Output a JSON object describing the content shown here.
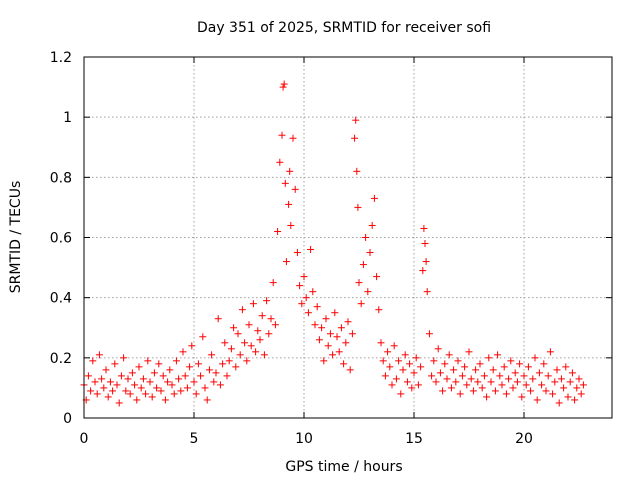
{
  "chart_data": {
    "type": "scatter",
    "title": "Day 351 of 2025, SRMTID for receiver sofi",
    "xlabel": "GPS time / hours",
    "ylabel": "SRMTID / TECUs",
    "xlim": [
      0,
      24
    ],
    "ylim": [
      0,
      1.2
    ],
    "xticks": [
      0,
      5,
      10,
      15,
      20
    ],
    "xtick_labels": [
      "0",
      "5",
      "10",
      "15",
      "20"
    ],
    "yticks": [
      0,
      0.2,
      0.4,
      0.6,
      0.8,
      1,
      1.2
    ],
    "ytick_labels": [
      "0",
      "0.2",
      "0.4",
      "0.6",
      "0.8",
      "1",
      "1.2"
    ],
    "grid": true,
    "marker": "+",
    "color": "#ff0000",
    "series": [
      {
        "name": "sofi",
        "points": [
          [
            0.0,
            0.11
          ],
          [
            0.1,
            0.06
          ],
          [
            0.2,
            0.14
          ],
          [
            0.3,
            0.09
          ],
          [
            0.4,
            0.19
          ],
          [
            0.5,
            0.12
          ],
          [
            0.6,
            0.08
          ],
          [
            0.7,
            0.21
          ],
          [
            0.8,
            0.13
          ],
          [
            0.9,
            0.1
          ],
          [
            1.0,
            0.16
          ],
          [
            1.1,
            0.07
          ],
          [
            1.2,
            0.12
          ],
          [
            1.3,
            0.09
          ],
          [
            1.4,
            0.18
          ],
          [
            1.5,
            0.11
          ],
          [
            1.6,
            0.05
          ],
          [
            1.7,
            0.14
          ],
          [
            1.8,
            0.2
          ],
          [
            1.9,
            0.09
          ],
          [
            2.0,
            0.13
          ],
          [
            2.1,
            0.08
          ],
          [
            2.2,
            0.15
          ],
          [
            2.3,
            0.11
          ],
          [
            2.4,
            0.06
          ],
          [
            2.5,
            0.17
          ],
          [
            2.6,
            0.1
          ],
          [
            2.7,
            0.13
          ],
          [
            2.8,
            0.08
          ],
          [
            2.9,
            0.19
          ],
          [
            3.0,
            0.12
          ],
          [
            3.1,
            0.07
          ],
          [
            3.2,
            0.15
          ],
          [
            3.3,
            0.1
          ],
          [
            3.4,
            0.18
          ],
          [
            3.5,
            0.09
          ],
          [
            3.6,
            0.14
          ],
          [
            3.7,
            0.06
          ],
          [
            3.8,
            0.12
          ],
          [
            3.9,
            0.16
          ],
          [
            4.0,
            0.11
          ],
          [
            4.1,
            0.08
          ],
          [
            4.2,
            0.19
          ],
          [
            4.3,
            0.13
          ],
          [
            4.4,
            0.09
          ],
          [
            4.5,
            0.22
          ],
          [
            4.6,
            0.14
          ],
          [
            4.7,
            0.1
          ],
          [
            4.8,
            0.17
          ],
          [
            4.9,
            0.24
          ],
          [
            5.0,
            0.12
          ],
          [
            5.1,
            0.08
          ],
          [
            5.2,
            0.18
          ],
          [
            5.3,
            0.14
          ],
          [
            5.4,
            0.27
          ],
          [
            5.5,
            0.1
          ],
          [
            5.6,
            0.06
          ],
          [
            5.7,
            0.16
          ],
          [
            5.8,
            0.21
          ],
          [
            5.9,
            0.12
          ],
          [
            6.0,
            0.15
          ],
          [
            6.1,
            0.33
          ],
          [
            6.2,
            0.11
          ],
          [
            6.3,
            0.18
          ],
          [
            6.4,
            0.25
          ],
          [
            6.5,
            0.14
          ],
          [
            6.6,
            0.19
          ],
          [
            6.7,
            0.23
          ],
          [
            6.8,
            0.3
          ],
          [
            6.9,
            0.17
          ],
          [
            7.0,
            0.28
          ],
          [
            7.1,
            0.21
          ],
          [
            7.2,
            0.36
          ],
          [
            7.3,
            0.25
          ],
          [
            7.4,
            0.19
          ],
          [
            7.5,
            0.31
          ],
          [
            7.6,
            0.24
          ],
          [
            7.7,
            0.38
          ],
          [
            7.8,
            0.22
          ],
          [
            7.9,
            0.29
          ],
          [
            8.0,
            0.26
          ],
          [
            8.1,
            0.34
          ],
          [
            8.2,
            0.21
          ],
          [
            8.3,
            0.39
          ],
          [
            8.4,
            0.28
          ],
          [
            8.5,
            0.33
          ],
          [
            8.6,
            0.45
          ],
          [
            8.7,
            0.31
          ],
          [
            8.8,
            0.62
          ],
          [
            8.9,
            0.85
          ],
          [
            9.0,
            0.94
          ],
          [
            9.05,
            1.1
          ],
          [
            9.1,
            1.11
          ],
          [
            9.15,
            0.78
          ],
          [
            9.2,
            0.52
          ],
          [
            9.3,
            0.71
          ],
          [
            9.35,
            0.82
          ],
          [
            9.4,
            0.64
          ],
          [
            9.5,
            0.93
          ],
          [
            9.6,
            0.76
          ],
          [
            9.7,
            0.55
          ],
          [
            9.8,
            0.44
          ],
          [
            9.9,
            0.38
          ],
          [
            10.0,
            0.47
          ],
          [
            10.1,
            0.4
          ],
          [
            10.2,
            0.35
          ],
          [
            10.3,
            0.56
          ],
          [
            10.4,
            0.42
          ],
          [
            10.5,
            0.31
          ],
          [
            10.6,
            0.37
          ],
          [
            10.7,
            0.26
          ],
          [
            10.8,
            0.3
          ],
          [
            10.9,
            0.19
          ],
          [
            11.0,
            0.33
          ],
          [
            11.1,
            0.24
          ],
          [
            11.2,
            0.28
          ],
          [
            11.3,
            0.21
          ],
          [
            11.4,
            0.35
          ],
          [
            11.5,
            0.27
          ],
          [
            11.6,
            0.22
          ],
          [
            11.7,
            0.3
          ],
          [
            11.8,
            0.18
          ],
          [
            11.9,
            0.25
          ],
          [
            12.0,
            0.32
          ],
          [
            12.1,
            0.16
          ],
          [
            12.2,
            0.28
          ],
          [
            12.3,
            0.93
          ],
          [
            12.35,
            0.99
          ],
          [
            12.4,
            0.82
          ],
          [
            12.45,
            0.7
          ],
          [
            12.5,
            0.45
          ],
          [
            12.6,
            0.38
          ],
          [
            12.7,
            0.51
          ],
          [
            12.8,
            0.6
          ],
          [
            12.9,
            0.42
          ],
          [
            13.0,
            0.55
          ],
          [
            13.1,
            0.64
          ],
          [
            13.2,
            0.73
          ],
          [
            13.3,
            0.47
          ],
          [
            13.4,
            0.36
          ],
          [
            13.5,
            0.25
          ],
          [
            13.6,
            0.19
          ],
          [
            13.7,
            0.14
          ],
          [
            13.8,
            0.22
          ],
          [
            13.9,
            0.17
          ],
          [
            14.0,
            0.11
          ],
          [
            14.1,
            0.24
          ],
          [
            14.2,
            0.13
          ],
          [
            14.3,
            0.19
          ],
          [
            14.4,
            0.08
          ],
          [
            14.5,
            0.16
          ],
          [
            14.6,
            0.21
          ],
          [
            14.7,
            0.12
          ],
          [
            14.8,
            0.18
          ],
          [
            14.9,
            0.1
          ],
          [
            15.0,
            0.15
          ],
          [
            15.1,
            0.2
          ],
          [
            15.2,
            0.11
          ],
          [
            15.3,
            0.17
          ],
          [
            15.4,
            0.49
          ],
          [
            15.45,
            0.63
          ],
          [
            15.5,
            0.58
          ],
          [
            15.55,
            0.52
          ],
          [
            15.6,
            0.42
          ],
          [
            15.7,
            0.28
          ],
          [
            15.8,
            0.14
          ],
          [
            15.9,
            0.19
          ],
          [
            16.0,
            0.12
          ],
          [
            16.1,
            0.23
          ],
          [
            16.2,
            0.15
          ],
          [
            16.3,
            0.09
          ],
          [
            16.4,
            0.18
          ],
          [
            16.5,
            0.13
          ],
          [
            16.6,
            0.21
          ],
          [
            16.7,
            0.1
          ],
          [
            16.8,
            0.16
          ],
          [
            16.9,
            0.12
          ],
          [
            17.0,
            0.19
          ],
          [
            17.1,
            0.08
          ],
          [
            17.2,
            0.14
          ],
          [
            17.3,
            0.17
          ],
          [
            17.4,
            0.11
          ],
          [
            17.5,
            0.22
          ],
          [
            17.6,
            0.13
          ],
          [
            17.7,
            0.09
          ],
          [
            17.8,
            0.16
          ],
          [
            17.9,
            0.12
          ],
          [
            18.0,
            0.18
          ],
          [
            18.1,
            0.1
          ],
          [
            18.2,
            0.14
          ],
          [
            18.3,
            0.07
          ],
          [
            18.4,
            0.2
          ],
          [
            18.5,
            0.12
          ],
          [
            18.6,
            0.16
          ],
          [
            18.7,
            0.09
          ],
          [
            18.8,
            0.21
          ],
          [
            18.9,
            0.14
          ],
          [
            19.0,
            0.11
          ],
          [
            19.1,
            0.17
          ],
          [
            19.2,
            0.08
          ],
          [
            19.3,
            0.13
          ],
          [
            19.4,
            0.19
          ],
          [
            19.5,
            0.1
          ],
          [
            19.6,
            0.15
          ],
          [
            19.7,
            0.12
          ],
          [
            19.8,
            0.18
          ],
          [
            19.9,
            0.07
          ],
          [
            20.0,
            0.14
          ],
          [
            20.1,
            0.11
          ],
          [
            20.2,
            0.17
          ],
          [
            20.3,
            0.09
          ],
          [
            20.4,
            0.13
          ],
          [
            20.5,
            0.2
          ],
          [
            20.6,
            0.06
          ],
          [
            20.7,
            0.15
          ],
          [
            20.8,
            0.11
          ],
          [
            20.9,
            0.18
          ],
          [
            21.0,
            0.09
          ],
          [
            21.1,
            0.14
          ],
          [
            21.2,
            0.22
          ],
          [
            21.3,
            0.08
          ],
          [
            21.4,
            0.12
          ],
          [
            21.5,
            0.16
          ],
          [
            21.6,
            0.05
          ],
          [
            21.7,
            0.13
          ],
          [
            21.8,
            0.1
          ],
          [
            21.9,
            0.17
          ],
          [
            22.0,
            0.07
          ],
          [
            22.1,
            0.12
          ],
          [
            22.2,
            0.15
          ],
          [
            22.3,
            0.06
          ],
          [
            22.4,
            0.1
          ],
          [
            22.5,
            0.13
          ],
          [
            22.6,
            0.08
          ],
          [
            22.7,
            0.11
          ]
        ]
      }
    ]
  }
}
